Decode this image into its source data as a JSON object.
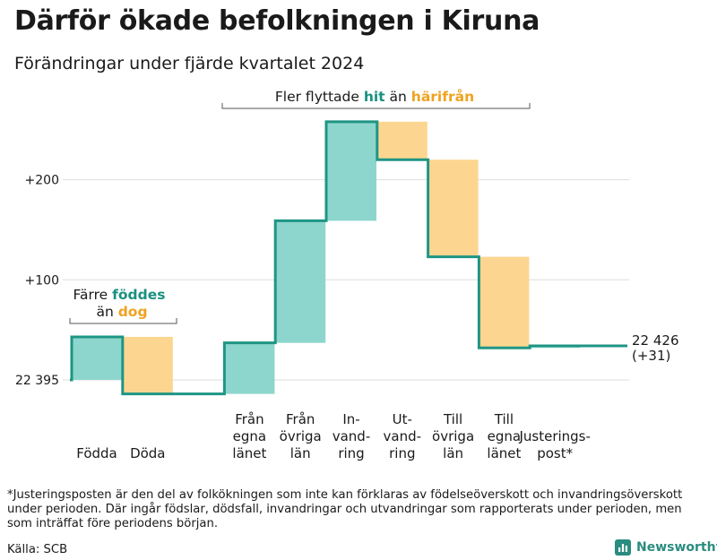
{
  "title": "Därför ökade befolkningen i Kiruna",
  "subtitle": "Förändringar under fjärde kvartalet 2024",
  "chart_data": {
    "type": "waterfall",
    "start_value": 22395,
    "start_label": "22 395",
    "end_label": "22 426",
    "end_change_label": "(+31)",
    "y_ticks": [
      {
        "value": 100,
        "label": "+100"
      },
      {
        "value": 200,
        "label": "+200"
      }
    ],
    "steps": [
      {
        "lines": [
          "Födda"
        ],
        "delta": 43,
        "kind": "inflow"
      },
      {
        "lines": [
          "Döda"
        ],
        "delta": -57,
        "kind": "outflow"
      },
      {
        "lines": [
          "Från",
          "egna",
          "länet"
        ],
        "delta": 51,
        "kind": "inflow"
      },
      {
        "lines": [
          "Från",
          "övriga",
          "län"
        ],
        "delta": 122,
        "kind": "inflow"
      },
      {
        "lines": [
          "In-",
          "vand-",
          "ring"
        ],
        "delta": 99,
        "kind": "inflow"
      },
      {
        "lines": [
          "Ut-",
          "vand-",
          "ring"
        ],
        "delta": -38,
        "kind": "outflow"
      },
      {
        "lines": [
          "Till",
          "övriga",
          "län"
        ],
        "delta": -97,
        "kind": "outflow"
      },
      {
        "lines": [
          "Till",
          "egna",
          "länet"
        ],
        "delta": -91,
        "kind": "outflow"
      },
      {
        "lines": [
          "Justerings-",
          "post*"
        ],
        "delta": 2,
        "kind": "adjustment"
      }
    ],
    "annotations": {
      "births": {
        "line1": "Färre ",
        "line1_strong": "föddes",
        "line2": "än ",
        "line2_strong": "dog"
      },
      "migration": {
        "pre": "Fler flyttade ",
        "strong1": "hit",
        "mid": " än ",
        "strong2": "härifrån"
      }
    },
    "colors": {
      "inflow": "#8dd6cd",
      "outflow": "#fcd690",
      "line": "#1f9584",
      "teal_text": "#1a9080",
      "orange_text": "#f0a21f",
      "grid": "#dddddd"
    }
  },
  "footnote": "*Justeringsposten är den del av folkökningen som inte kan förklaras av födelseöverskott och invandringsöverskott under perioden. Där ingår födslar, dödsfall, invandringar och utvandringar som rapporterats under perioden, men som inträffat före periodens början.",
  "source": "Källa: SCB",
  "brand": {
    "name": "Newsworthy",
    "icon": "newsworthy-bar-chart-icon"
  }
}
